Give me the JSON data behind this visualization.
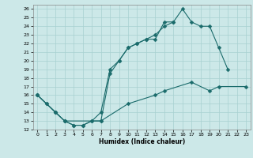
{
  "xlabel": "Humidex (Indice chaleur)",
  "bg_color": "#cce8e8",
  "line_color": "#1a6b6b",
  "xlim": [
    -0.5,
    23.5
  ],
  "ylim": [
    12,
    26.5
  ],
  "yticks": [
    12,
    13,
    14,
    15,
    16,
    17,
    18,
    19,
    20,
    21,
    22,
    23,
    24,
    25,
    26
  ],
  "xticks": [
    0,
    1,
    2,
    3,
    4,
    5,
    6,
    7,
    8,
    9,
    10,
    11,
    12,
    13,
    14,
    15,
    16,
    17,
    18,
    19,
    20,
    21,
    22,
    23
  ],
  "line1_x": [
    0,
    1,
    2,
    3,
    4,
    5,
    6,
    7,
    8,
    9,
    10,
    11,
    12,
    13,
    14,
    15,
    16,
    17,
    18,
    19,
    20,
    21
  ],
  "line1_y": [
    16.0,
    15.0,
    14.0,
    13.0,
    12.5,
    12.5,
    13.0,
    14.0,
    19.0,
    20.0,
    21.5,
    22.0,
    22.5,
    23.0,
    24.0,
    24.5,
    26.0,
    24.5,
    24.0,
    24.0,
    21.5,
    19.0
  ],
  "line2_x": [
    0,
    1,
    2,
    3,
    4,
    5,
    6,
    7,
    8,
    9,
    10,
    11,
    12,
    13,
    14,
    15
  ],
  "line2_y": [
    16.0,
    15.0,
    14.0,
    13.0,
    12.5,
    12.5,
    13.0,
    13.0,
    18.5,
    20.0,
    21.5,
    22.0,
    22.5,
    22.5,
    24.5,
    24.5
  ],
  "line3_x": [
    0,
    2,
    3,
    7,
    10,
    13,
    14,
    17,
    19,
    20,
    23
  ],
  "line3_y": [
    16.0,
    14.0,
    13.0,
    13.0,
    15.0,
    16.0,
    16.5,
    17.5,
    16.5,
    17.0,
    17.0
  ],
  "grid_color": "#a8d0d0",
  "markersize": 2.5,
  "lw": 0.8
}
